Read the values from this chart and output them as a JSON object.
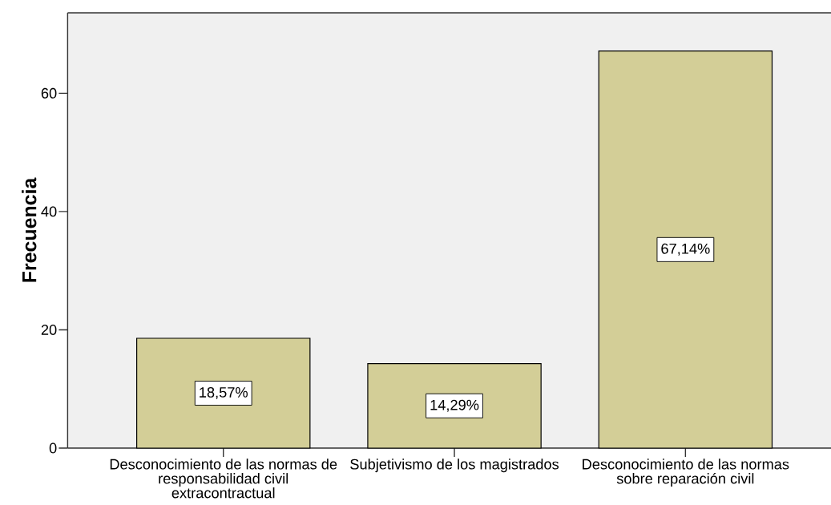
{
  "chart_data": {
    "type": "bar",
    "ylabel": "Frecuencia",
    "categories": [
      "Desconocimiento de las normas de responsabilidad civil extracontractual",
      "Subjetivismo de los magistrados",
      "Desconocimiento de las normas sobre reparación civil"
    ],
    "values": [
      18.57,
      14.29,
      67.14
    ],
    "value_labels": [
      "18,57%",
      "14,29%",
      "67,14%"
    ],
    "color": "#d3ce97",
    "ylim": [
      0,
      73.6
    ],
    "yticks": [
      0,
      20,
      40,
      60
    ]
  }
}
